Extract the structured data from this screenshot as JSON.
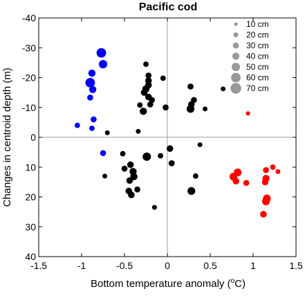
{
  "chart_data": {
    "type": "scatter",
    "title": "Pacific cod",
    "xlabel": "Bottom temperature anomaly (",
    "xlabel_sup": "o",
    "xlabel_unit": "C)",
    "ylabel": "Changes in centroid depth (m)",
    "xlim": [
      -1.5,
      1.5
    ],
    "ylim": [
      -40,
      40
    ],
    "y_inverted": true,
    "x_ticks": [
      -1.5,
      -1,
      -0.5,
      0,
      0.5,
      1,
      1.5
    ],
    "x_tick_labels": [
      "-1.5",
      "-1",
      "-0.5",
      "0",
      "0.5",
      "1",
      "1.5"
    ],
    "y_ticks": [
      -40,
      -30,
      -20,
      -10,
      0,
      10,
      20,
      30,
      40
    ],
    "y_tick_labels": [
      "-40",
      "-30",
      "-20",
      "-10",
      "0",
      "10",
      "20",
      "30",
      "40"
    ],
    "zero_lines": true,
    "grid": false,
    "legend": {
      "placement": "top-right",
      "title": "",
      "entries": [
        {
          "label": "10 cm",
          "size_cm": 10
        },
        {
          "label": "20 cm",
          "size_cm": 20
        },
        {
          "label": "30 cm",
          "size_cm": 30
        },
        {
          "label": "40 cm",
          "size_cm": 40
        },
        {
          "label": "50 cm",
          "size_cm": 50
        },
        {
          "label": "60 cm",
          "size_cm": 60
        },
        {
          "label": "70 cm",
          "size_cm": 70
        }
      ],
      "color": "#999999"
    },
    "series": [
      {
        "color": "#0000ff",
        "points": [
          {
            "x": -0.77,
            "y": -28.3,
            "size_cm": 60
          },
          {
            "x": -0.75,
            "y": -24.5,
            "size_cm": 50
          },
          {
            "x": -0.88,
            "y": -21.5,
            "size_cm": 40
          },
          {
            "x": -0.9,
            "y": -18.3,
            "size_cm": 60
          },
          {
            "x": -0.87,
            "y": -16.0,
            "size_cm": 40
          },
          {
            "x": -0.9,
            "y": -13.3,
            "size_cm": 30
          },
          {
            "x": -0.86,
            "y": -6.0,
            "size_cm": 30
          },
          {
            "x": -1.05,
            "y": -4.0,
            "size_cm": 25
          },
          {
            "x": -0.88,
            "y": -3.0,
            "size_cm": 25
          },
          {
            "x": -0.75,
            "y": 5.3,
            "size_cm": 30
          }
        ]
      },
      {
        "color": "#000000",
        "points": [
          {
            "x": -0.25,
            "y": -24.5,
            "size_cm": 25
          },
          {
            "x": -0.22,
            "y": -20.7,
            "size_cm": 30
          },
          {
            "x": -0.22,
            "y": -19.0,
            "size_cm": 35
          },
          {
            "x": -0.22,
            "y": -17.5,
            "size_cm": 35
          },
          {
            "x": -0.05,
            "y": -19.8,
            "size_cm": 25
          },
          {
            "x": -0.25,
            "y": -16.2,
            "size_cm": 40
          },
          {
            "x": -0.27,
            "y": -15.0,
            "size_cm": 35
          },
          {
            "x": -0.22,
            "y": -13.5,
            "size_cm": 35
          },
          {
            "x": -0.18,
            "y": -12.5,
            "size_cm": 30
          },
          {
            "x": -0.2,
            "y": -11.0,
            "size_cm": 30
          },
          {
            "x": -0.28,
            "y": -8.7,
            "size_cm": 40
          },
          {
            "x": -0.32,
            "y": -10.8,
            "size_cm": 25
          },
          {
            "x": -0.02,
            "y": -10.0,
            "size_cm": 30
          },
          {
            "x": 0.27,
            "y": -17.0,
            "size_cm": 30
          },
          {
            "x": 0.31,
            "y": -12.5,
            "size_cm": 30
          },
          {
            "x": 0.28,
            "y": -11.0,
            "size_cm": 35
          },
          {
            "x": 0.27,
            "y": -9.5,
            "size_cm": 45
          },
          {
            "x": 0.44,
            "y": -9.5,
            "size_cm": 20
          },
          {
            "x": 0.65,
            "y": -16.2,
            "size_cm": 20
          },
          {
            "x": -0.7,
            "y": -1.5,
            "size_cm": 20
          },
          {
            "x": -0.34,
            "y": -2.0,
            "size_cm": 20
          },
          {
            "x": 0.38,
            "y": 2.5,
            "size_cm": 20
          },
          {
            "x": 0.03,
            "y": 3.8,
            "size_cm": 35
          },
          {
            "x": -0.52,
            "y": 5.5,
            "size_cm": 25
          },
          {
            "x": -0.08,
            "y": 6.2,
            "size_cm": 25
          },
          {
            "x": -0.24,
            "y": 6.5,
            "size_cm": 50
          },
          {
            "x": 0.05,
            "y": 8.7,
            "size_cm": 30
          },
          {
            "x": -0.43,
            "y": 9.2,
            "size_cm": 35
          },
          {
            "x": -0.5,
            "y": 10.5,
            "size_cm": 30
          },
          {
            "x": -0.4,
            "y": 11.5,
            "size_cm": 40
          },
          {
            "x": -0.39,
            "y": 13.2,
            "size_cm": 40
          },
          {
            "x": -0.44,
            "y": 14.5,
            "size_cm": 35
          },
          {
            "x": -0.45,
            "y": 18.0,
            "size_cm": 35
          },
          {
            "x": -0.42,
            "y": 19.3,
            "size_cm": 35
          },
          {
            "x": -0.35,
            "y": 17.5,
            "size_cm": 30
          },
          {
            "x": 0.33,
            "y": 13.0,
            "size_cm": 25
          },
          {
            "x": 0.28,
            "y": 18.0,
            "size_cm": 45
          },
          {
            "x": -0.73,
            "y": 13.0,
            "size_cm": 20
          },
          {
            "x": -0.15,
            "y": 23.5,
            "size_cm": 20
          }
        ]
      },
      {
        "color": "#ff0000",
        "points": [
          {
            "x": 0.94,
            "y": -8.0,
            "size_cm": 15
          },
          {
            "x": 0.82,
            "y": 11.8,
            "size_cm": 45
          },
          {
            "x": 0.77,
            "y": 13.2,
            "size_cm": 45
          },
          {
            "x": 0.8,
            "y": 14.7,
            "size_cm": 35
          },
          {
            "x": 0.92,
            "y": 15.3,
            "size_cm": 30
          },
          {
            "x": 1.15,
            "y": 11.0,
            "size_cm": 30
          },
          {
            "x": 1.23,
            "y": 10.0,
            "size_cm": 25
          },
          {
            "x": 1.29,
            "y": 11.5,
            "size_cm": 20
          },
          {
            "x": 1.15,
            "y": 13.8,
            "size_cm": 40
          },
          {
            "x": 1.14,
            "y": 15.0,
            "size_cm": 35
          },
          {
            "x": 1.16,
            "y": 20.5,
            "size_cm": 45
          },
          {
            "x": 1.15,
            "y": 21.5,
            "size_cm": 45
          },
          {
            "x": 1.12,
            "y": 25.8,
            "size_cm": 35
          }
        ]
      }
    ]
  }
}
